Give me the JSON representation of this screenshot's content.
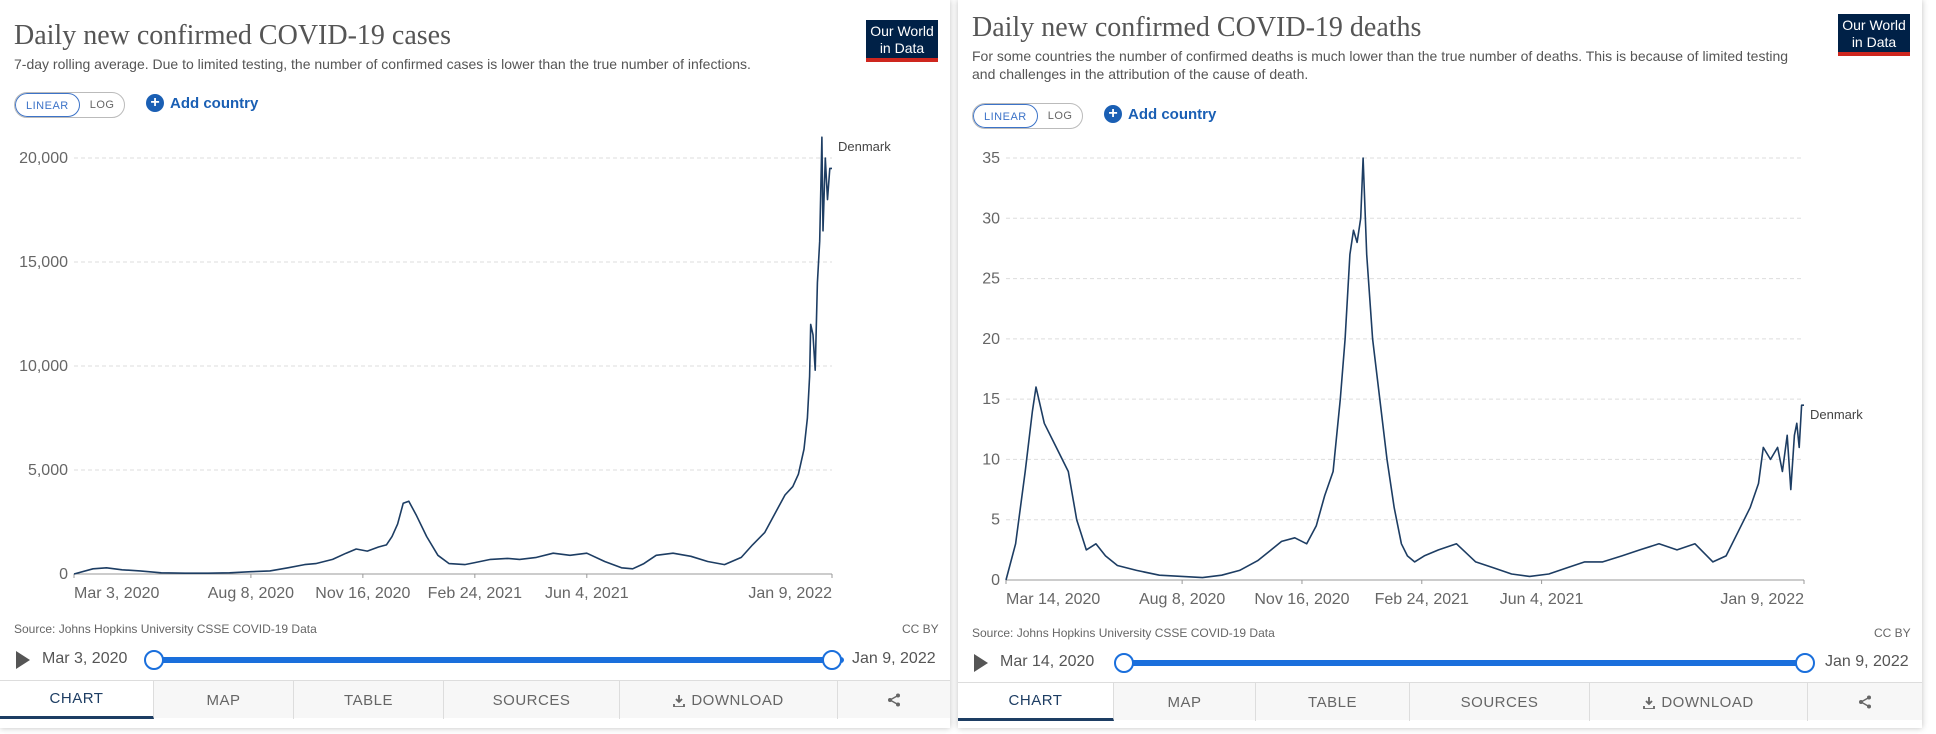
{
  "chart_data": [
    {
      "type": "line",
      "title": "Daily new confirmed COVID-19 cases",
      "subtitle": "7-day rolling average. Due to limited testing, the number of confirmed cases is lower than the true number of infections.",
      "scale_options": [
        "LINEAR",
        "LOG"
      ],
      "active_scale": "LINEAR",
      "add_country_label": "Add country",
      "logo_lines": [
        "Our World",
        "in Data"
      ],
      "ylim": [
        0,
        20000
      ],
      "yticks": [
        0,
        5000,
        10000,
        15000,
        20000
      ],
      "ytick_labels": [
        "0",
        "5,000",
        "10,000",
        "15,000",
        "20,000"
      ],
      "xtick_labels": [
        "Mar 3, 2020",
        "Aug 8, 2020",
        "Nov 16, 2020",
        "Feb 24, 2021",
        "Jun 4, 2021",
        "Jan 9, 2022"
      ],
      "xtick_dates": [
        "2020-03-03",
        "2020-08-08",
        "2020-11-16",
        "2021-02-24",
        "2021-06-04",
        "2022-01-09"
      ],
      "x_range": [
        "2020-03-03",
        "2022-01-09"
      ],
      "grid": true,
      "series": [
        {
          "name": "Denmark",
          "x": [
            "2020-03-03",
            "2020-03-20",
            "2020-04-01",
            "2020-04-15",
            "2020-05-01",
            "2020-05-20",
            "2020-06-10",
            "2020-07-01",
            "2020-07-20",
            "2020-08-08",
            "2020-08-25",
            "2020-09-10",
            "2020-09-25",
            "2020-10-05",
            "2020-10-20",
            "2020-11-01",
            "2020-11-10",
            "2020-11-20",
            "2020-11-30",
            "2020-12-07",
            "2020-12-12",
            "2020-12-17",
            "2020-12-22",
            "2020-12-27",
            "2021-01-03",
            "2021-01-12",
            "2021-01-22",
            "2021-02-01",
            "2021-02-15",
            "2021-02-24",
            "2021-03-10",
            "2021-03-25",
            "2021-04-05",
            "2021-04-20",
            "2021-05-05",
            "2021-05-20",
            "2021-06-04",
            "2021-06-20",
            "2021-07-05",
            "2021-07-15",
            "2021-07-25",
            "2021-08-05",
            "2021-08-20",
            "2021-09-05",
            "2021-09-20",
            "2021-10-05",
            "2021-10-20",
            "2021-10-30",
            "2021-11-10",
            "2021-11-20",
            "2021-11-28",
            "2021-12-05",
            "2021-12-10",
            "2021-12-15",
            "2021-12-18",
            "2021-12-20",
            "2021-12-21",
            "2021-12-23",
            "2021-12-25",
            "2021-12-27",
            "2021-12-29",
            "2021-12-31",
            "2022-01-01",
            "2022-01-03",
            "2022-01-05",
            "2022-01-07",
            "2022-01-09"
          ],
          "values": [
            0,
            250,
            300,
            200,
            150,
            60,
            40,
            40,
            60,
            110,
            150,
            300,
            450,
            500,
            700,
            1000,
            1200,
            1100,
            1300,
            1400,
            1800,
            2400,
            3400,
            3500,
            2800,
            1800,
            900,
            500,
            450,
            550,
            700,
            750,
            700,
            800,
            1000,
            900,
            1000,
            600,
            300,
            250,
            500,
            900,
            1000,
            850,
            600,
            450,
            800,
            1400,
            2000,
            3000,
            3800,
            4200,
            4800,
            6000,
            7500,
            9500,
            12000,
            11500,
            9800,
            14000,
            16000,
            21000,
            16500,
            20000,
            18000,
            19500,
            19500
          ],
          "label_position": "end"
        }
      ],
      "source": "Source: Johns Hopkins University CSSE COVID-19 Data",
      "license": "CC BY",
      "timeline_start": "Mar 3, 2020",
      "timeline_end": "Jan 9, 2022",
      "tabs": [
        "CHART",
        "MAP",
        "TABLE",
        "SOURCES",
        "DOWNLOAD"
      ],
      "active_tab": "CHART"
    },
    {
      "type": "line",
      "title": "Daily new confirmed COVID-19 deaths",
      "subtitle": "For some countries the number of confirmed deaths is much lower than the true number of deaths. This is because of limited testing and challenges in the attribution of the cause of death.",
      "scale_options": [
        "LINEAR",
        "LOG"
      ],
      "active_scale": "LINEAR",
      "add_country_label": "Add country",
      "logo_lines": [
        "Our World",
        "in Data"
      ],
      "ylim": [
        0,
        35
      ],
      "yticks": [
        0,
        5,
        10,
        15,
        20,
        25,
        30,
        35
      ],
      "ytick_labels": [
        "0",
        "5",
        "10",
        "15",
        "20",
        "25",
        "30",
        "35"
      ],
      "xtick_labels": [
        "Mar 14, 2020",
        "Aug 8, 2020",
        "Nov 16, 2020",
        "Feb 24, 2021",
        "Jun 4, 2021",
        "Jan 9, 2022"
      ],
      "xtick_dates": [
        "2020-03-14",
        "2020-08-08",
        "2020-11-16",
        "2021-02-24",
        "2021-06-04",
        "2022-01-09"
      ],
      "x_range": [
        "2020-03-14",
        "2022-01-09"
      ],
      "grid": true,
      "series": [
        {
          "name": "Denmark",
          "x": [
            "2020-03-14",
            "2020-03-22",
            "2020-03-30",
            "2020-04-05",
            "2020-04-08",
            "2020-04-15",
            "2020-04-25",
            "2020-05-05",
            "2020-05-12",
            "2020-05-20",
            "2020-05-28",
            "2020-06-05",
            "2020-06-15",
            "2020-07-01",
            "2020-07-20",
            "2020-08-08",
            "2020-08-25",
            "2020-09-10",
            "2020-09-25",
            "2020-10-10",
            "2020-10-20",
            "2020-10-30",
            "2020-11-10",
            "2020-11-20",
            "2020-11-28",
            "2020-12-05",
            "2020-12-12",
            "2020-12-18",
            "2020-12-22",
            "2020-12-26",
            "2020-12-29",
            "2021-01-01",
            "2021-01-04",
            "2021-01-06",
            "2021-01-09",
            "2021-01-14",
            "2021-01-20",
            "2021-01-26",
            "2021-02-01",
            "2021-02-07",
            "2021-02-12",
            "2021-02-18",
            "2021-02-26",
            "2021-03-10",
            "2021-03-25",
            "2021-04-10",
            "2021-04-25",
            "2021-05-10",
            "2021-05-25",
            "2021-06-10",
            "2021-06-25",
            "2021-07-10",
            "2021-07-25",
            "2021-08-10",
            "2021-08-25",
            "2021-09-10",
            "2021-09-25",
            "2021-10-10",
            "2021-10-25",
            "2021-11-05",
            "2021-11-15",
            "2021-11-25",
            "2021-12-02",
            "2021-12-06",
            "2021-12-12",
            "2021-12-18",
            "2021-12-22",
            "2021-12-26",
            "2021-12-29",
            "2022-01-01",
            "2022-01-03",
            "2022-01-05",
            "2022-01-07",
            "2022-01-09"
          ],
          "values": [
            0,
            3,
            9,
            14,
            16,
            13,
            11,
            9,
            5,
            2.5,
            3,
            2,
            1.2,
            0.8,
            0.4,
            0.3,
            0.2,
            0.4,
            0.8,
            1.6,
            2.4,
            3.2,
            3.5,
            3,
            4.5,
            7,
            9,
            15,
            20,
            27,
            29,
            28,
            30,
            35,
            27,
            20,
            15,
            10,
            6,
            3,
            2,
            1.5,
            2,
            2.5,
            3,
            1.5,
            1,
            0.5,
            0.3,
            0.5,
            1,
            1.5,
            1.5,
            2,
            2.5,
            3,
            2.5,
            3,
            1.5,
            2,
            4,
            6,
            8,
            11,
            10,
            11,
            9,
            12,
            7.5,
            12,
            13,
            11,
            14.5,
            14.5
          ],
          "label_position": "end"
        }
      ],
      "source": "Source: Johns Hopkins University CSSE COVID-19 Data",
      "license": "CC BY",
      "timeline_start": "Mar 14, 2020",
      "timeline_end": "Jan 9, 2022",
      "tabs": [
        "CHART",
        "MAP",
        "TABLE",
        "SOURCES",
        "DOWNLOAD"
      ],
      "active_tab": "CHART"
    }
  ],
  "icons": {
    "play": "play-icon",
    "add": "plus-circle-icon",
    "download": "download-icon",
    "share": "share-icon"
  },
  "colors": {
    "line": "#1d3d63",
    "accent": "#1a6fdc",
    "logo_bg": "#002147",
    "logo_stripe": "#ce261e",
    "grid": "#dddddd",
    "link": "#1a5fb4"
  }
}
